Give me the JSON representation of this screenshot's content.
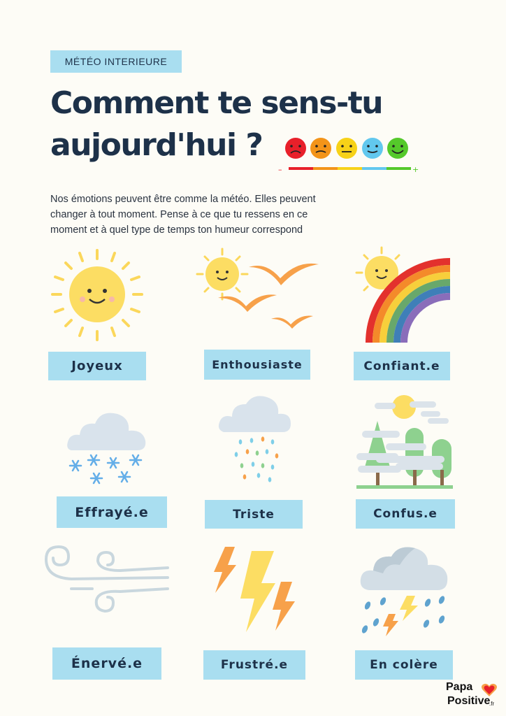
{
  "header": {
    "tag": "MÉTÉO INTERIEURE",
    "title_line1": "Comment te sens-tu",
    "title_line2": "aujourd'hui ?"
  },
  "mood_scale": {
    "minus": "–",
    "plus": "+",
    "colors": [
      "#e8202a",
      "#f39419",
      "#f7d218",
      "#62c8ee",
      "#55c92b"
    ]
  },
  "intro": "Nos émotions peuvent être comme la météo. Elles peuvent changer à tout moment. Pense à ce que tu ressens en ce moment et à quel type de temps ton humeur correspond",
  "moods": [
    {
      "label": "Joyeux",
      "icon": "sun-icon"
    },
    {
      "label": "Enthousiaste",
      "icon": "sun-birds-icon"
    },
    {
      "label": "Confiant.e",
      "icon": "sun-rainbow-icon"
    },
    {
      "label": "Effrayé.e",
      "icon": "snow-cloud-icon"
    },
    {
      "label": "Triste",
      "icon": "rain-cloud-icon"
    },
    {
      "label": "Confus.e",
      "icon": "fog-forest-icon"
    },
    {
      "label": "Énervé.e",
      "icon": "wind-icon"
    },
    {
      "label": "Frustré.e",
      "icon": "lightning-icon"
    },
    {
      "label": "En colère",
      "icon": "storm-cloud-icon"
    }
  ],
  "brand": {
    "line1": "Papa",
    "line2": "Positive",
    "suffix": ".fr",
    "icon": "heart-icon"
  }
}
